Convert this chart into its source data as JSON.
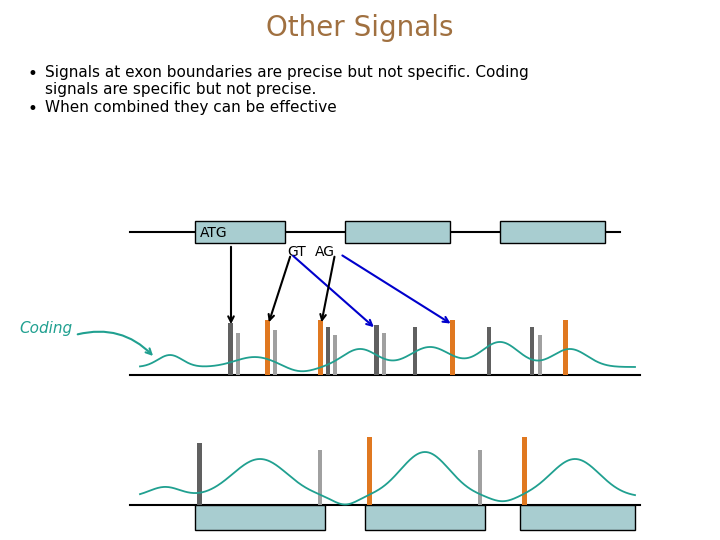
{
  "title": "Other Signals",
  "title_color": "#a07040",
  "title_fontsize": 20,
  "bullet1_line1": "Signals at exon boundaries are precise but not specific. Coding",
  "bullet1_line2": "signals are specific but not precise.",
  "bullet2": "When combined they can be effective",
  "text_color": "#000000",
  "text_fontsize": 11,
  "bg_color": "#ffffff",
  "exon_color": "#a8cdd0",
  "exon_border": "#000000",
  "line_color": "#000000",
  "bar_dark": "#606060",
  "bar_orange": "#e07820",
  "bar_light": "#a0a0a0",
  "curve_color": "#20a090",
  "coding_label_color": "#20a090",
  "arrow_black": "#000000",
  "arrow_blue": "#0000cc"
}
